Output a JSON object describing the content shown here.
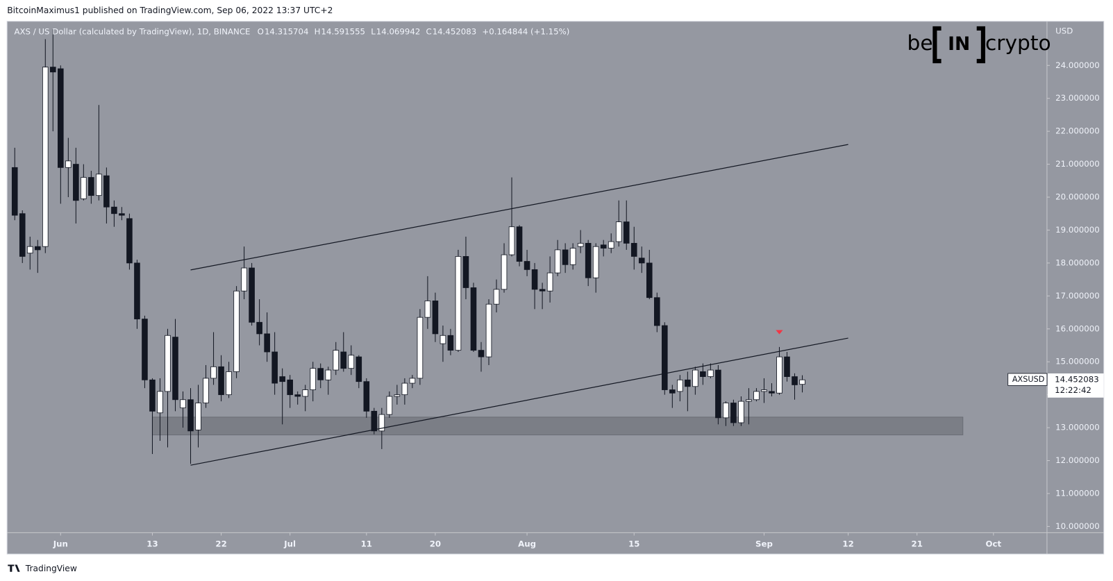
{
  "header": {
    "byline": "BitcoinMaximus1 published on TradingView.com, Sep 06, 2022 13:37 UTC+2",
    "footer": "TradingView"
  },
  "logo": {
    "left": "be",
    "middle": "IN",
    "right": "crypto"
  },
  "chart_data": {
    "type": "candlestick",
    "title": "AXS / US Dollar (calculated by TradingView), 1D, BINANCE",
    "ohlc_keys": [
      "O",
      "H",
      "L",
      "C"
    ],
    "change": "+0.164844 (+1.15%)",
    "y_axis_label": "USD",
    "symbol": "AXSUSD",
    "countdown": "12:22:42",
    "bull_color": "#ffffff",
    "bear_color": "#131722",
    "x": [
      "2022-05-26",
      "2022-05-27",
      "2022-05-28",
      "2022-05-29",
      "2022-05-30",
      "2022-05-31",
      "2022-06-01",
      "2022-06-02",
      "2022-06-03",
      "2022-06-04",
      "2022-06-05",
      "2022-06-06",
      "2022-06-07",
      "2022-06-08",
      "2022-06-09",
      "2022-06-10",
      "2022-06-11",
      "2022-06-12",
      "2022-06-13",
      "2022-06-14",
      "2022-06-15",
      "2022-06-16",
      "2022-06-17",
      "2022-06-18",
      "2022-06-19",
      "2022-06-20",
      "2022-06-21",
      "2022-06-22",
      "2022-06-23",
      "2022-06-24",
      "2022-06-25",
      "2022-06-26",
      "2022-06-27",
      "2022-06-28",
      "2022-06-29",
      "2022-06-30",
      "2022-07-01",
      "2022-07-02",
      "2022-07-03",
      "2022-07-04",
      "2022-07-05",
      "2022-07-06",
      "2022-07-07",
      "2022-07-08",
      "2022-07-09",
      "2022-07-10",
      "2022-07-11",
      "2022-07-12",
      "2022-07-13",
      "2022-07-14",
      "2022-07-15",
      "2022-07-16",
      "2022-07-17",
      "2022-07-18",
      "2022-07-19",
      "2022-07-20",
      "2022-07-21",
      "2022-07-22",
      "2022-07-23",
      "2022-07-24",
      "2022-07-25",
      "2022-07-26",
      "2022-07-27",
      "2022-07-28",
      "2022-07-29",
      "2022-07-30",
      "2022-07-31",
      "2022-08-01",
      "2022-08-02",
      "2022-08-03",
      "2022-08-04",
      "2022-08-05",
      "2022-08-06",
      "2022-08-07",
      "2022-08-08",
      "2022-08-09",
      "2022-08-10",
      "2022-08-11",
      "2022-08-12",
      "2022-08-13",
      "2022-08-14",
      "2022-08-15",
      "2022-08-16",
      "2022-08-17",
      "2022-08-18",
      "2022-08-19",
      "2022-08-20",
      "2022-08-21",
      "2022-08-22",
      "2022-08-23",
      "2022-08-24",
      "2022-08-25",
      "2022-08-26",
      "2022-08-27",
      "2022-08-28",
      "2022-08-29",
      "2022-08-30",
      "2022-08-31",
      "2022-09-01",
      "2022-09-02",
      "2022-09-03",
      "2022-09-04",
      "2022-09-05",
      "2022-09-06"
    ],
    "open": [
      20.9,
      19.5,
      18.3,
      18.5,
      18.5,
      23.95,
      23.9,
      20.9,
      21.0,
      19.95,
      20.6,
      20.05,
      20.65,
      19.7,
      19.5,
      19.35,
      18.0,
      16.3,
      14.45,
      13.45,
      14.1,
      15.75,
      13.6,
      13.85,
      12.93,
      13.75,
      14.5,
      14.85,
      14.0,
      14.7,
      17.15,
      17.85,
      16.2,
      15.85,
      15.3,
      14.55,
      14.45,
      14.0,
      13.95,
      14.15,
      14.8,
      14.45,
      14.75,
      15.3,
      14.8,
      15.15,
      14.4,
      13.5,
      12.9,
      13.4,
      13.95,
      14.0,
      14.35,
      14.5,
      16.35,
      16.85,
      15.55,
      15.8,
      15.35,
      18.2,
      17.25,
      15.35,
      15.15,
      16.75,
      17.2,
      18.25,
      19.1,
      18.05,
      17.8,
      17.2,
      17.15,
      17.7,
      18.4,
      17.95,
      18.5,
      18.6,
      17.55,
      18.55,
      18.45,
      18.65,
      19.25,
      18.6,
      18.15,
      18.0,
      16.95,
      16.1,
      14.15,
      14.1,
      14.45,
      14.25,
      14.7,
      14.55,
      14.75,
      13.3,
      13.75,
      13.15,
      13.8,
      13.85,
      14.1,
      14.1,
      14.05,
      15.15,
      14.55,
      14.315704
    ],
    "high": [
      21.5,
      19.6,
      18.8,
      18.7,
      24.8,
      25.1,
      24.0,
      21.8,
      21.5,
      21.0,
      20.8,
      22.8,
      20.9,
      19.9,
      19.7,
      19.5,
      18.1,
      16.4,
      14.5,
      14.5,
      16.0,
      16.3,
      14.1,
      14.2,
      14.3,
      14.9,
      15.9,
      15.2,
      15.0,
      17.3,
      18.5,
      18.0,
      16.9,
      16.5,
      15.9,
      14.8,
      14.6,
      14.1,
      14.3,
      15.0,
      14.95,
      14.85,
      15.6,
      15.9,
      15.5,
      15.2,
      14.5,
      13.6,
      13.6,
      14.1,
      14.3,
      14.5,
      14.6,
      16.6,
      17.6,
      17.1,
      16.1,
      16.0,
      18.4,
      18.8,
      17.4,
      15.6,
      16.9,
      17.5,
      18.6,
      20.6,
      19.15,
      18.4,
      18.0,
      17.4,
      18.2,
      18.7,
      18.6,
      18.6,
      19.0,
      18.7,
      18.6,
      18.7,
      18.9,
      19.9,
      19.9,
      19.1,
      18.5,
      18.4,
      17.1,
      16.2,
      14.3,
      14.6,
      14.7,
      14.85,
      14.95,
      14.95,
      14.9,
      13.8,
      13.85,
      13.95,
      14.2,
      14.2,
      14.5,
      14.35,
      15.45,
      15.3,
      14.65,
      14.591555
    ],
    "low": [
      19.3,
      18.0,
      17.8,
      17.7,
      18.3,
      22.0,
      19.8,
      20.0,
      19.2,
      19.9,
      19.8,
      19.9,
      19.2,
      19.1,
      19.3,
      17.8,
      16.0,
      14.2,
      12.2,
      12.6,
      12.4,
      13.5,
      13.0,
      11.9,
      12.4,
      13.6,
      14.3,
      13.8,
      13.9,
      14.5,
      16.9,
      16.1,
      15.5,
      15.0,
      14.0,
      13.1,
      13.6,
      13.7,
      13.5,
      13.8,
      14.2,
      14.0,
      14.6,
      14.7,
      14.6,
      14.2,
      13.3,
      12.8,
      12.35,
      13.3,
      13.7,
      13.7,
      14.2,
      14.3,
      16.0,
      15.6,
      15.0,
      15.2,
      15.3,
      16.9,
      15.3,
      14.7,
      14.9,
      16.5,
      17.1,
      18.2,
      17.9,
      17.6,
      16.6,
      16.6,
      16.8,
      17.6,
      17.7,
      17.8,
      18.3,
      17.3,
      17.1,
      18.2,
      18.3,
      18.5,
      18.4,
      17.8,
      17.7,
      16.9,
      15.9,
      14.0,
      13.6,
      13.8,
      13.5,
      14.0,
      14.3,
      14.5,
      13.1,
      13.05,
      13.05,
      13.05,
      13.1,
      13.8,
      13.75,
      13.95,
      14.0,
      14.4,
      13.85,
      14.069942
    ],
    "close": [
      19.45,
      18.2,
      18.5,
      18.4,
      23.95,
      23.8,
      20.9,
      21.1,
      19.9,
      20.6,
      20.05,
      20.7,
      19.7,
      19.5,
      19.45,
      18.0,
      16.3,
      14.45,
      13.5,
      14.1,
      15.8,
      13.85,
      13.85,
      12.9,
      13.75,
      14.5,
      14.85,
      14.0,
      14.7,
      17.15,
      17.85,
      16.2,
      15.85,
      15.3,
      14.35,
      14.4,
      14.0,
      13.95,
      14.15,
      14.8,
      14.45,
      14.75,
      15.35,
      14.8,
      15.2,
      14.4,
      13.5,
      12.9,
      13.4,
      13.95,
      14.0,
      14.35,
      14.5,
      16.35,
      16.85,
      15.85,
      15.8,
      15.35,
      18.2,
      17.25,
      15.35,
      15.15,
      16.75,
      17.2,
      18.25,
      19.1,
      18.05,
      17.8,
      17.2,
      17.15,
      17.7,
      18.4,
      17.95,
      18.45,
      18.6,
      17.55,
      18.5,
      18.45,
      18.65,
      19.25,
      18.6,
      18.2,
      18.0,
      16.95,
      16.1,
      14.15,
      14.05,
      14.45,
      14.25,
      14.75,
      14.55,
      14.75,
      13.3,
      13.75,
      13.15,
      13.8,
      13.85,
      14.1,
      14.15,
      14.05,
      15.15,
      14.55,
      14.3,
      14.452083
    ],
    "xlim": [
      "2022-05-25",
      "2022-10-08"
    ],
    "ylim": [
      9.81,
      25.34
    ],
    "yticks": [
      {
        "value": 10,
        "label": "10.000000"
      },
      {
        "value": 11,
        "label": "11.000000"
      },
      {
        "value": 12,
        "label": "12.000000"
      },
      {
        "value": 13,
        "label": "13.000000"
      },
      {
        "value": 14,
        "label": "14.000000"
      },
      {
        "value": 15,
        "label": "15.000000"
      },
      {
        "value": 16,
        "label": "16.000000"
      },
      {
        "value": 17,
        "label": "17.000000"
      },
      {
        "value": 18,
        "label": "18.000000"
      },
      {
        "value": 19,
        "label": "19.000000"
      },
      {
        "value": 20,
        "label": "20.000000"
      },
      {
        "value": 21,
        "label": "21.000000"
      },
      {
        "value": 22,
        "label": "22.000000"
      },
      {
        "value": 23,
        "label": "23.000000"
      },
      {
        "value": 24,
        "label": "24.000000"
      }
    ],
    "xticks": [
      {
        "value": "2022-06-01",
        "label": "Jun"
      },
      {
        "value": "2022-06-13",
        "label": "13"
      },
      {
        "value": "2022-06-22",
        "label": "22"
      },
      {
        "value": "2022-07-01",
        "label": "Jul"
      },
      {
        "value": "2022-07-11",
        "label": "11"
      },
      {
        "value": "2022-07-20",
        "label": "20"
      },
      {
        "value": "2022-08-01",
        "label": "Aug"
      },
      {
        "value": "2022-08-15",
        "label": "15"
      },
      {
        "value": "2022-09-01",
        "label": "Sep"
      },
      {
        "value": "2022-09-12",
        "label": "12"
      },
      {
        "value": "2022-09-21",
        "label": "21"
      },
      {
        "value": "2022-10-01",
        "label": "Oct"
      }
    ],
    "trend_lines": [
      {
        "x": [
          "2022-06-18",
          "2022-09-12"
        ],
        "y": [
          17.79,
          21.6
        ]
      },
      {
        "x": [
          "2022-06-18",
          "2022-09-12"
        ],
        "y": [
          11.86,
          15.72
        ]
      }
    ],
    "zone": {
      "x": [
        "2022-06-13",
        "2022-09-27"
      ],
      "y": [
        12.78,
        13.32
      ]
    },
    "marker": {
      "x": "2022-09-03",
      "y": 15.9,
      "color": "#f23645"
    }
  }
}
